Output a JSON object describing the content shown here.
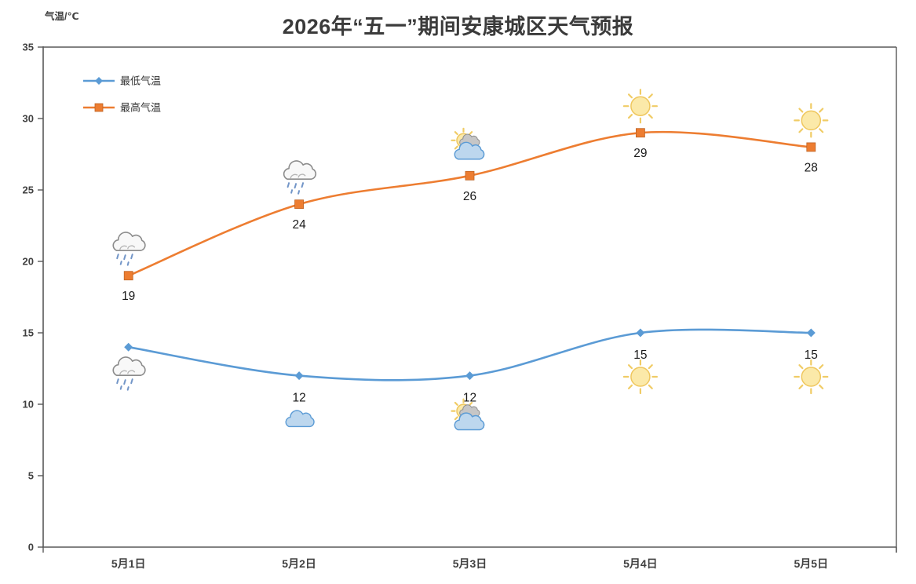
{
  "page": {
    "background": "#FFFFFF"
  },
  "header": {
    "title": "2026年“五一”期间安康城区天气预报",
    "y_axis_title": "气温/℃"
  },
  "colors": {
    "axis": "#595959",
    "tick_label": "#404040",
    "data_label": "#1A1A1A",
    "title": "#3B3B3B",
    "min_series": "#5B9BD5",
    "max_series": "#ED7D31"
  },
  "chart_data": {
    "type": "line",
    "title": "2026年“五一”期间安康城区天气预报",
    "xlabel": "",
    "ylabel": "气温/℃",
    "categories": [
      "5月1日",
      "5月2日",
      "5月3日",
      "5月4日",
      "5月5日"
    ],
    "series": [
      {
        "name": "最低气温",
        "values": [
          14,
          12,
          12,
          15,
          15
        ],
        "labels": [
          "",
          "12",
          "12",
          "15",
          "15"
        ],
        "color": "#5B9BD5",
        "marker": "diamond",
        "icons": [
          "rain-cloud",
          "cloud",
          "sun-cloud",
          "sun",
          "sun"
        ],
        "icon_position": "below"
      },
      {
        "name": "最高气温",
        "values": [
          19,
          24,
          26,
          29,
          28
        ],
        "labels": [
          "19",
          "24",
          "26",
          "29",
          "28"
        ],
        "color": "#ED7D31",
        "marker": "square",
        "icons": [
          "rain-cloud",
          "rain-cloud",
          "sun-cloud",
          "sun",
          "sun"
        ],
        "icon_position": "above"
      }
    ],
    "ylim": [
      0,
      35
    ],
    "y_tick_step": 5,
    "y_ticks": [
      0,
      5,
      10,
      15,
      20,
      25,
      30,
      35
    ],
    "grid": false,
    "smooth": true,
    "legend_position": "top-left-inside",
    "plot_border": "top-right-left-bottom"
  }
}
